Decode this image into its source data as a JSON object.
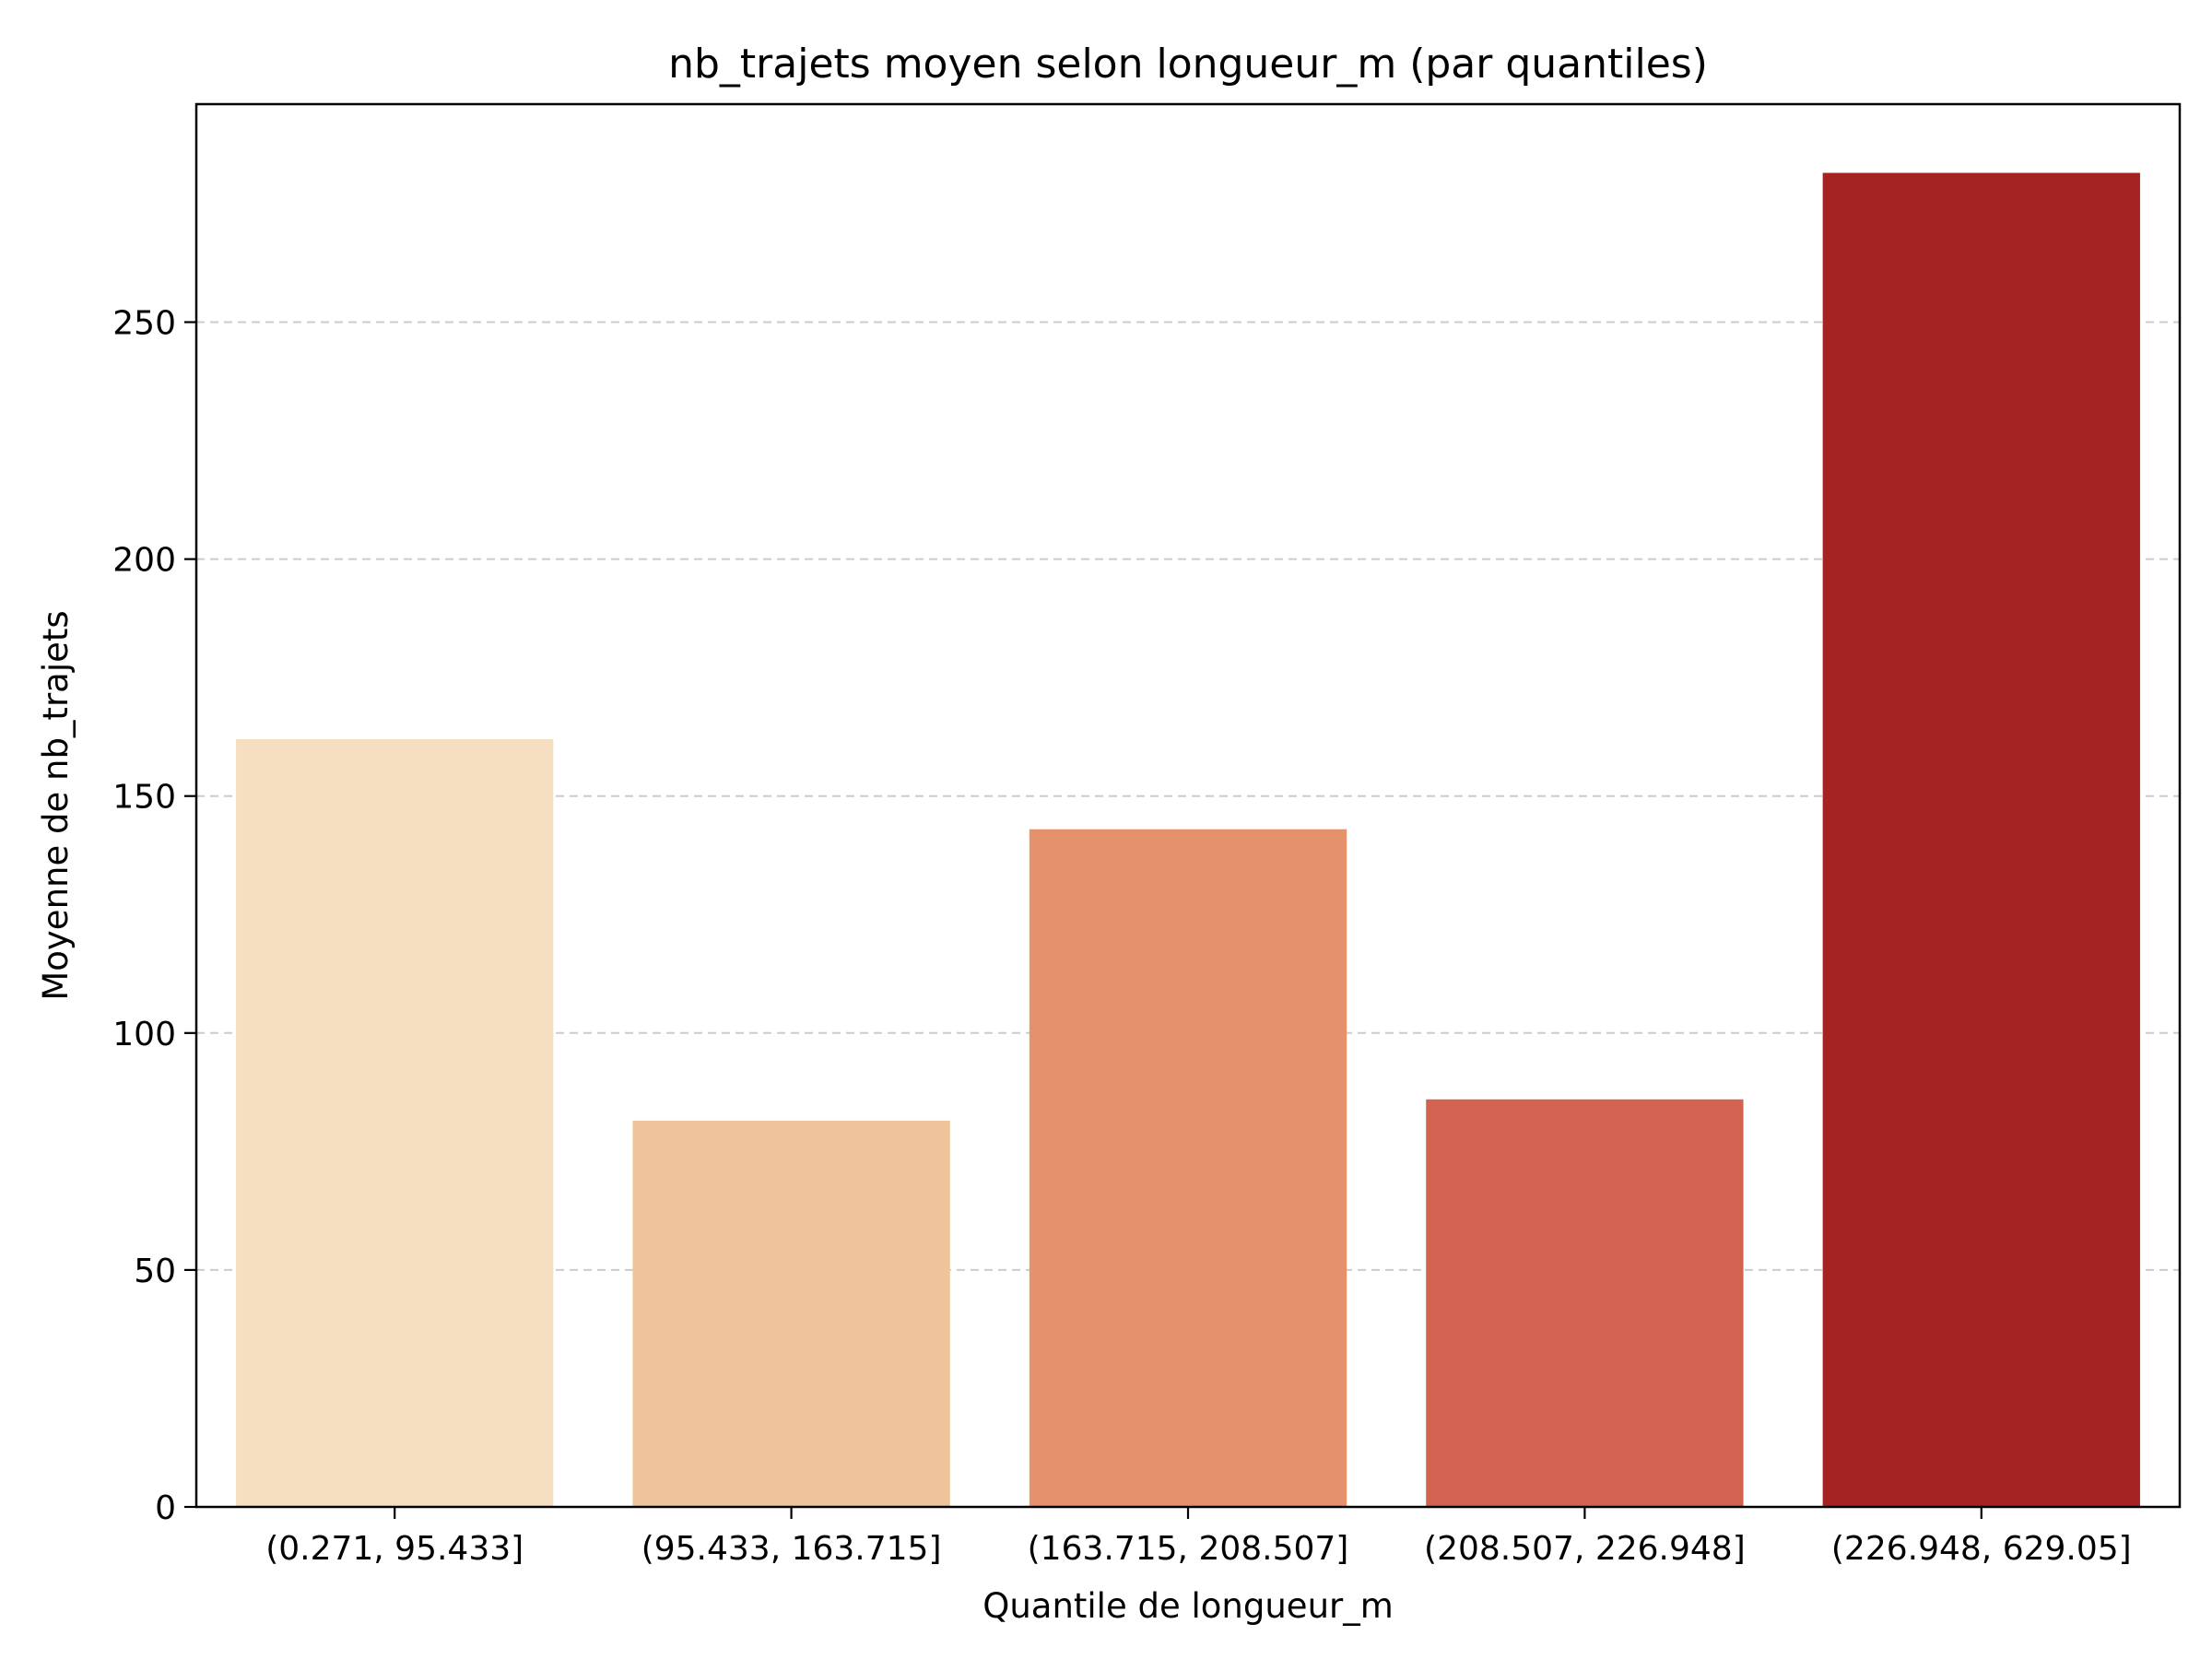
{
  "chart_data": {
    "type": "bar",
    "title": "nb_trajets moyen selon longueur_m (par quantiles)",
    "xlabel": "Quantile de longueur_m",
    "ylabel": "Moyenne de nb_trajets",
    "categories": [
      "(0.271, 95.433]",
      "(95.433, 163.715]",
      "(163.715, 208.507]",
      "(208.507, 226.948]",
      "(226.948, 629.05]"
    ],
    "values": [
      162,
      81.5,
      143,
      86,
      281.5
    ],
    "colors": [
      "#f5dfc0",
      "#efc49b",
      "#e5926c",
      "#d26350",
      "#a52422"
    ],
    "ylim": [
      0,
      296
    ],
    "yticks": [
      0,
      50,
      100,
      150,
      200,
      250
    ],
    "grid": "horizontal dashed",
    "legend": "none"
  }
}
